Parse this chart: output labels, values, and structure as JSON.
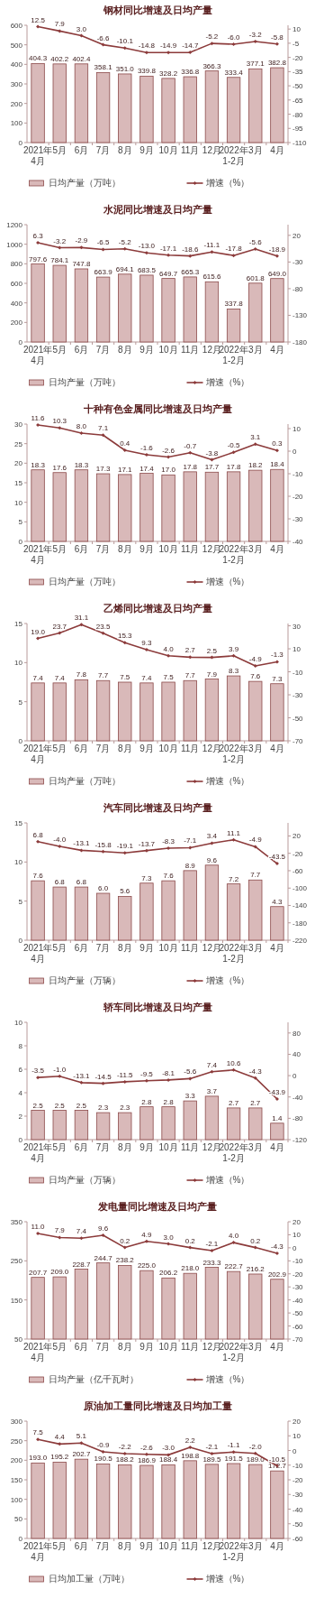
{
  "chart_data": [
    {
      "type": "bar",
      "title": "钢材同比增速及日均产量",
      "categories": [
        "2021年\n4月",
        "5月",
        "6月",
        "7月",
        "8月",
        "9月",
        "10月",
        "11月",
        "12月",
        "2022年\n1-2月",
        "3月",
        "4月"
      ],
      "series": [
        {
          "name": "日均产量（万吨）",
          "type": "bar",
          "color": "#d9b9b9",
          "values": [
            404.3,
            402.2,
            402.4,
            358.1,
            351.0,
            339.8,
            328.2,
            336.8,
            366.3,
            333.4,
            377.1,
            382.8
          ],
          "value_labels": [
            "404.3",
            "402.2",
            "402.4",
            "358.1",
            "351.0",
            "339.8",
            "328.2",
            "336.8",
            "366.3",
            "333.4",
            "377.1",
            "382.8"
          ]
        },
        {
          "name": "增速（%）",
          "type": "line",
          "axis": "y2",
          "color": "#8c3b3b",
          "values": [
            12.5,
            7.9,
            3.0,
            -6.6,
            -10.1,
            -14.8,
            -14.9,
            -14.7,
            -5.2,
            -6.0,
            -3.2,
            -5.8
          ],
          "value_labels": [
            "12.5",
            "7.9",
            "3.0",
            "-6.6",
            "-10.1",
            "-14.8",
            "-14.9",
            "-14.7",
            "-5.2",
            "-6.0",
            "-3.2",
            "-5.8"
          ]
        }
      ],
      "ylim": [
        0,
        600
      ],
      "yticks": [
        0,
        100,
        200,
        300,
        400,
        500,
        600
      ],
      "y2lim": [
        -110,
        14
      ],
      "y2ticks": [
        -110,
        -95,
        -80,
        -65,
        -50,
        -35,
        -20,
        -5,
        10
      ],
      "legend": "bottom",
      "marker": "diamond"
    },
    {
      "type": "bar",
      "title": "水泥同比增速及日均产量",
      "categories": [
        "2021年\n4月",
        "5月",
        "6月",
        "7月",
        "8月",
        "9月",
        "10月",
        "11月",
        "12月",
        "2022年\n1-2月",
        "3月",
        "4月"
      ],
      "series": [
        {
          "name": "日均产量（万吨）",
          "type": "bar",
          "color": "#d9b9b9",
          "values": [
            797.6,
            784.1,
            747.8,
            663.9,
            694.1,
            683.5,
            649.7,
            665.3,
            615.6,
            337.8,
            601.8,
            649.0
          ],
          "value_labels": [
            "797.6",
            "784.1",
            "747.8",
            "663.9",
            "694.1",
            "683.5",
            "649.7",
            "665.3",
            "615.6",
            "337.8",
            "601.8",
            "649.0"
          ]
        },
        {
          "name": "增速（%）",
          "type": "line",
          "axis": "y2",
          "color": "#8c3b3b",
          "values": [
            6.3,
            -3.2,
            -2.9,
            -6.5,
            -5.2,
            -13.0,
            -17.1,
            -18.6,
            -11.1,
            -17.8,
            -5.6,
            -18.9
          ],
          "value_labels": [
            "6.3",
            "-3.2",
            "-2.9",
            "-6.5",
            "-5.2",
            "-13.0",
            "-17.1",
            "-18.6",
            "-11.1",
            "-17.8",
            "-5.6",
            "-18.9"
          ]
        }
      ],
      "ylim": [
        0,
        1200
      ],
      "yticks": [
        0,
        200,
        400,
        600,
        800,
        1000,
        1200
      ],
      "y2lim": [
        -180,
        40
      ],
      "y2ticks": [
        -180,
        -130,
        -80,
        -30,
        20
      ],
      "legend": "bottom",
      "marker": "diamond"
    },
    {
      "type": "bar",
      "title": "十种有色金属同比增速及日均产量",
      "categories": [
        "2021年\n4月",
        "5月",
        "6月",
        "7月",
        "8月",
        "9月",
        "10月",
        "11月",
        "12月",
        "2022年\n1-2月",
        "3月",
        "4月"
      ],
      "series": [
        {
          "name": "日均产量（万吨）",
          "type": "bar",
          "color": "#d9b9b9",
          "values": [
            18.3,
            17.6,
            18.3,
            17.3,
            17.1,
            17.4,
            17.0,
            17.8,
            17.7,
            17.8,
            18.2,
            18.4
          ],
          "value_labels": [
            "18.3",
            "17.6",
            "18.3",
            "17.3",
            "17.1",
            "17.4",
            "17.0",
            "17.8",
            "17.7",
            "17.8",
            "18.2",
            "18.4"
          ]
        },
        {
          "name": "增速（%）",
          "type": "line",
          "axis": "y2",
          "color": "#8c3b3b",
          "values": [
            11.6,
            10.3,
            8.0,
            7.1,
            0.4,
            -1.6,
            -2.6,
            -0.7,
            -3.8,
            -0.5,
            3.1,
            0.3
          ],
          "value_labels": [
            "11.6",
            "10.3",
            "8.0",
            "7.1",
            "0.4",
            "-1.6",
            "-2.6",
            "-0.7",
            "-3.8",
            "-0.5",
            "3.1",
            "0.3"
          ]
        }
      ],
      "ylim": [
        0,
        30
      ],
      "yticks": [
        0,
        5,
        10,
        15,
        20,
        25,
        30
      ],
      "y2lim": [
        -40,
        12
      ],
      "y2ticks": [
        -40,
        -30,
        -20,
        -10,
        0,
        10
      ],
      "legend": "bottom",
      "marker": "diamond"
    },
    {
      "type": "bar",
      "title": "乙烯同比增速及日均产量",
      "categories": [
        "2021年\n4月",
        "5月",
        "6月",
        "7月",
        "8月",
        "9月",
        "10月",
        "11月",
        "12月",
        "2022年\n1-2月",
        "3月",
        "4月"
      ],
      "series": [
        {
          "name": "日均产量（万吨）",
          "type": "bar",
          "color": "#d9b9b9",
          "values": [
            7.4,
            7.4,
            7.8,
            7.7,
            7.5,
            7.4,
            7.5,
            7.7,
            7.9,
            8.3,
            7.6,
            7.3
          ],
          "value_labels": [
            "7.4",
            "7.4",
            "7.8",
            "7.7",
            "7.5",
            "7.4",
            "7.5",
            "7.7",
            "7.9",
            "8.3",
            "7.6",
            "7.3"
          ]
        },
        {
          "name": "增速（%）",
          "type": "line",
          "axis": "y2",
          "color": "#8c3b3b",
          "values": [
            19.0,
            23.7,
            31.1,
            23.5,
            15.3,
            9.3,
            4.0,
            2.7,
            2.5,
            3.9,
            -4.9,
            -1.3
          ],
          "value_labels": [
            "19.0",
            "23.7",
            "31.1",
            "23.5",
            "15.3",
            "9.3",
            "4.0",
            "2.7",
            "2.5",
            "3.9",
            "-4.9",
            "-1.3"
          ]
        }
      ],
      "ylim": [
        0,
        15
      ],
      "yticks": [
        0,
        5,
        10,
        15
      ],
      "y2lim": [
        -70,
        32
      ],
      "y2ticks": [
        -70,
        -50,
        -30,
        -10,
        10,
        30
      ],
      "legend": "bottom",
      "marker": "diamond"
    },
    {
      "type": "bar",
      "title": "汽车同比增速及日均产量",
      "categories": [
        "2021年\n4月",
        "5月",
        "6月",
        "7月",
        "8月",
        "9月",
        "10月",
        "11月",
        "12月",
        "2022年\n1-2月",
        "3月",
        "4月"
      ],
      "series": [
        {
          "name": "日均产量（万辆）",
          "type": "bar",
          "color": "#d9b9b9",
          "values": [
            7.6,
            6.8,
            6.8,
            6.0,
            5.6,
            7.3,
            7.6,
            8.9,
            9.6,
            7.2,
            7.7,
            4.3
          ],
          "value_labels": [
            "7.6",
            "6.8",
            "6.8",
            "6.0",
            "5.6",
            "7.3",
            "7.6",
            "8.9",
            "9.6",
            "7.2",
            "7.7",
            "4.3"
          ]
        },
        {
          "name": "增速（%）",
          "type": "line",
          "axis": "y2",
          "color": "#8c3b3b",
          "values": [
            6.8,
            -4.0,
            -13.1,
            -15.8,
            -19.1,
            -13.7,
            -8.3,
            -7.1,
            3.4,
            11.1,
            -4.9,
            -43.5
          ],
          "value_labels": [
            "6.8",
            "-4.0",
            "-13.1",
            "-15.8",
            "-19.1",
            "-13.7",
            "-8.3",
            "-7.1",
            "3.4",
            "11.1",
            "-4.9",
            "-43.5"
          ]
        }
      ],
      "ylim": [
        0,
        15
      ],
      "yticks": [
        0,
        5,
        10,
        15
      ],
      "y2lim": [
        -220,
        50
      ],
      "y2ticks": [
        -220,
        -180,
        -140,
        -100,
        -60,
        -20,
        20
      ],
      "legend": "bottom",
      "marker": "diamond"
    },
    {
      "type": "bar",
      "title": "轿车同比增速及日均产量",
      "categories": [
        "2021年\n4月",
        "5月",
        "6月",
        "7月",
        "8月",
        "9月",
        "10月",
        "11月",
        "12月",
        "2022年\n1-2月",
        "3月",
        "4月"
      ],
      "series": [
        {
          "name": "日均产量（万辆）",
          "type": "bar",
          "color": "#d9b9b9",
          "values": [
            2.5,
            2.5,
            2.5,
            2.3,
            2.3,
            2.8,
            2.8,
            3.3,
            3.7,
            2.7,
            2.7,
            1.4
          ],
          "value_labels": [
            "2.5",
            "2.5",
            "2.5",
            "2.3",
            "2.3",
            "2.8",
            "2.8",
            "3.3",
            "3.7",
            "2.7",
            "2.7",
            "1.4"
          ]
        },
        {
          "name": "增速（%）",
          "type": "line",
          "axis": "y2",
          "color": "#8c3b3b",
          "values": [
            -3.5,
            -1.0,
            -13.1,
            -14.5,
            -11.5,
            -9.5,
            -8.1,
            -5.6,
            7.4,
            10.6,
            -4.3,
            -43.9
          ],
          "value_labels": [
            "-3.5",
            "-1.0",
            "-13.1",
            "-14.5",
            "-11.5",
            "-9.5",
            "-8.1",
            "-5.6",
            "7.4",
            "10.6",
            "-4.3",
            "-43.9"
          ]
        }
      ],
      "ylim": [
        0,
        10
      ],
      "yticks": [
        0,
        2,
        4,
        6,
        8,
        10
      ],
      "y2lim": [
        -120,
        100
      ],
      "y2ticks": [
        -120,
        -80,
        -40,
        0,
        40,
        80
      ],
      "legend": "bottom",
      "marker": "diamond"
    },
    {
      "type": "bar",
      "title": "发电量同比增速及日均产量",
      "categories": [
        "2021年\n4月",
        "5月",
        "6月",
        "7月",
        "8月",
        "9月",
        "10月",
        "11月",
        "12月",
        "2022年\n1-2月",
        "3月",
        "4月"
      ],
      "series": [
        {
          "name": "日均产量（亿千瓦时）",
          "type": "bar",
          "color": "#d9b9b9",
          "values": [
            207.7,
            209.0,
            228.7,
            244.7,
            238.2,
            225.0,
            206.2,
            218.0,
            233.3,
            222.7,
            216.2,
            202.9
          ],
          "value_labels": [
            "207.7",
            "209.0",
            "228.7",
            "244.7",
            "238.2",
            "225.0",
            "206.2",
            "218.0",
            "233.3",
            "222.7",
            "216.2",
            "202.9"
          ]
        },
        {
          "name": "增速（%）",
          "type": "line",
          "axis": "y2",
          "color": "#8c3b3b",
          "values": [
            11.0,
            7.9,
            7.4,
            9.6,
            0.2,
            4.9,
            3.0,
            0.2,
            -2.1,
            4.0,
            0.2,
            -4.3
          ],
          "value_labels": [
            "11.0",
            "7.9",
            "7.4",
            "9.6",
            "0.2",
            "4.9",
            "3.0",
            "0.2",
            "-2.1",
            "4.0",
            "0.2",
            "-4.3"
          ]
        }
      ],
      "ylim": [
        50,
        350
      ],
      "yticks": [
        50,
        150,
        250,
        350
      ],
      "y2lim": [
        -70,
        20
      ],
      "y2ticks": [
        -70,
        -60,
        -50,
        -40,
        -30,
        -20,
        -10,
        0,
        10,
        20
      ],
      "legend": "bottom",
      "marker": "diamond"
    },
    {
      "type": "bar",
      "title": "原油加工量同比增速及日均加工量",
      "categories": [
        "2021年\n4月",
        "5月",
        "6月",
        "7月",
        "8月",
        "9月",
        "10月",
        "11月",
        "12月",
        "2022年\n1-2月",
        "3月",
        "4月"
      ],
      "series": [
        {
          "name": "日均加工量（万吨）",
          "type": "bar",
          "color": "#d9b9b9",
          "values": [
            193.0,
            195.2,
            202.7,
            190.5,
            188.2,
            186.9,
            188.4,
            198.8,
            189.5,
            191.5,
            189.0,
            172.7
          ],
          "value_labels": [
            "193.0",
            "195.2",
            "202.7",
            "190.5",
            "188.2",
            "186.9",
            "188.4",
            "198.8",
            "189.5",
            "191.5",
            "189.0",
            "172.7"
          ]
        },
        {
          "name": "增速（%）",
          "type": "line",
          "axis": "y2",
          "color": "#8c3b3b",
          "values": [
            7.5,
            4.4,
            5.1,
            -0.9,
            -2.2,
            -2.6,
            -3.0,
            2.2,
            -2.1,
            -1.1,
            -2.0,
            -10.5
          ],
          "value_labels": [
            "7.5",
            "4.4",
            "5.1",
            "-0.9",
            "-2.2",
            "-2.6",
            "-3.0",
            "2.2",
            "-2.1",
            "-1.1",
            "-2.0",
            "-10.5"
          ]
        }
      ],
      "ylim": [
        0,
        300
      ],
      "yticks": [
        0,
        50,
        100,
        150,
        200,
        250,
        300
      ],
      "y2lim": [
        -60,
        20
      ],
      "y2ticks": [
        -60,
        -50,
        -40,
        -30,
        -20,
        -10,
        0,
        10,
        20
      ],
      "legend": "bottom",
      "marker": "diamond"
    }
  ]
}
